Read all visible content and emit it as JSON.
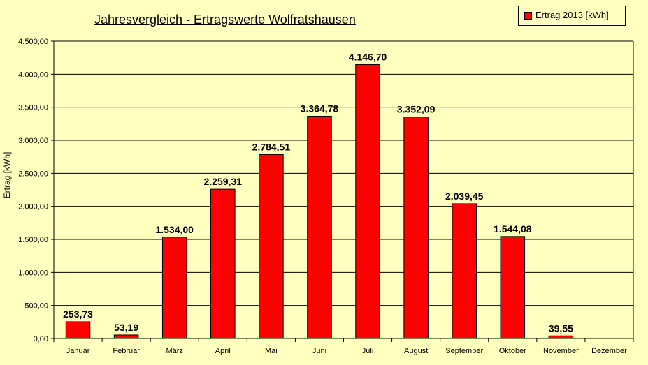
{
  "chart_data": {
    "type": "bar",
    "title": "Jahresvergleich - Ertragswerte Wolfratshausen",
    "xlabel": "",
    "ylabel": "Ertrag [kWh]",
    "categories": [
      "Januar",
      "Februar",
      "März",
      "April",
      "Mai",
      "Juni",
      "Juli",
      "August",
      "September",
      "Oktober",
      "November",
      "Dezember"
    ],
    "series": [
      {
        "name": "Ertrag 2013 [kWh]",
        "color": "#ff0000",
        "values": [
          253.73,
          53.19,
          1534.0,
          2259.31,
          2784.51,
          3364.78,
          4146.7,
          3352.09,
          2039.45,
          1544.08,
          39.55,
          null
        ],
        "labels": [
          "253,73",
          "53,19",
          "1.534,00",
          "2.259,31",
          "2.784,51",
          "3.364,78",
          "4.146,70",
          "3.352,09",
          "2.039,45",
          "1.544,08",
          "39,55",
          ""
        ]
      }
    ],
    "ylim": [
      0,
      4500
    ],
    "yticks": [
      0,
      500,
      1000,
      1500,
      2000,
      2500,
      3000,
      3500,
      4000,
      4500
    ],
    "ytick_labels": [
      "0,00",
      "500,00",
      "1.000,00",
      "1.500,00",
      "2.000,00",
      "2.500,00",
      "3.000,00",
      "3.500,00",
      "4.000,00",
      "4.500,00"
    ],
    "grid": true,
    "legend_position": "top-right",
    "background_color": "#ffffc0",
    "bar_color": "#ff0000"
  }
}
